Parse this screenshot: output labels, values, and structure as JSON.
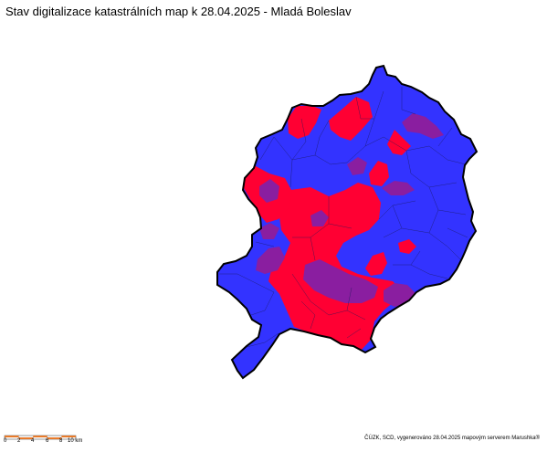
{
  "title": "Stav digitalizace katastrálních map k 28.04.2025 - Mladá Boleslav",
  "map": {
    "district": "Mladá Boleslav",
    "status_colors": {
      "blue": "#3333ff",
      "red": "#ff0033",
      "purple": "#8a1ea0"
    },
    "border_color": "#000000"
  },
  "scalebar": {
    "labels": [
      "0",
      "2",
      "4",
      "6",
      "8",
      "10 km"
    ],
    "colors": [
      "#e87a2a",
      "#ffffff"
    ]
  },
  "credits": "ČÚZK, SCD, vygenerováno 28.04.2025 mapovým serverem Marushka®"
}
